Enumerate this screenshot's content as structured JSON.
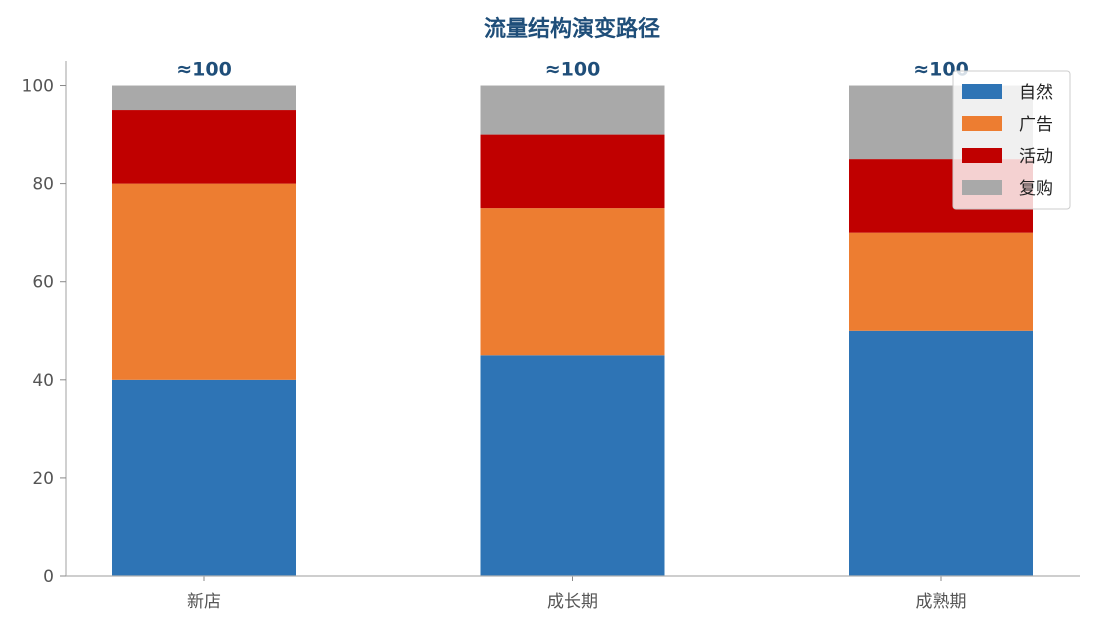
{
  "chart_data": {
    "type": "bar",
    "stacked": true,
    "title": "流量结构演变路径",
    "xlabel": "",
    "ylabel": "",
    "categories": [
      "新店",
      "成长期",
      "成熟期"
    ],
    "series": [
      {
        "name": "自然",
        "values": [
          40,
          45,
          50
        ],
        "color": "#2e74b5"
      },
      {
        "name": "广告",
        "values": [
          40,
          30,
          20
        ],
        "color": "#ed7d31"
      },
      {
        "name": "活动",
        "values": [
          15,
          15,
          15
        ],
        "color": "#c00000"
      },
      {
        "name": "复购",
        "values": [
          5,
          10,
          15
        ],
        "color": "#a9a9a9"
      }
    ],
    "totals_labels": [
      "≈100",
      "≈100",
      "≈100"
    ],
    "ylim": [
      0,
      105
    ],
    "yticks": [
      0,
      20,
      40,
      60,
      80,
      100
    ],
    "grid": false,
    "legend_position": "top-right",
    "title_color": "#1f4e79"
  }
}
